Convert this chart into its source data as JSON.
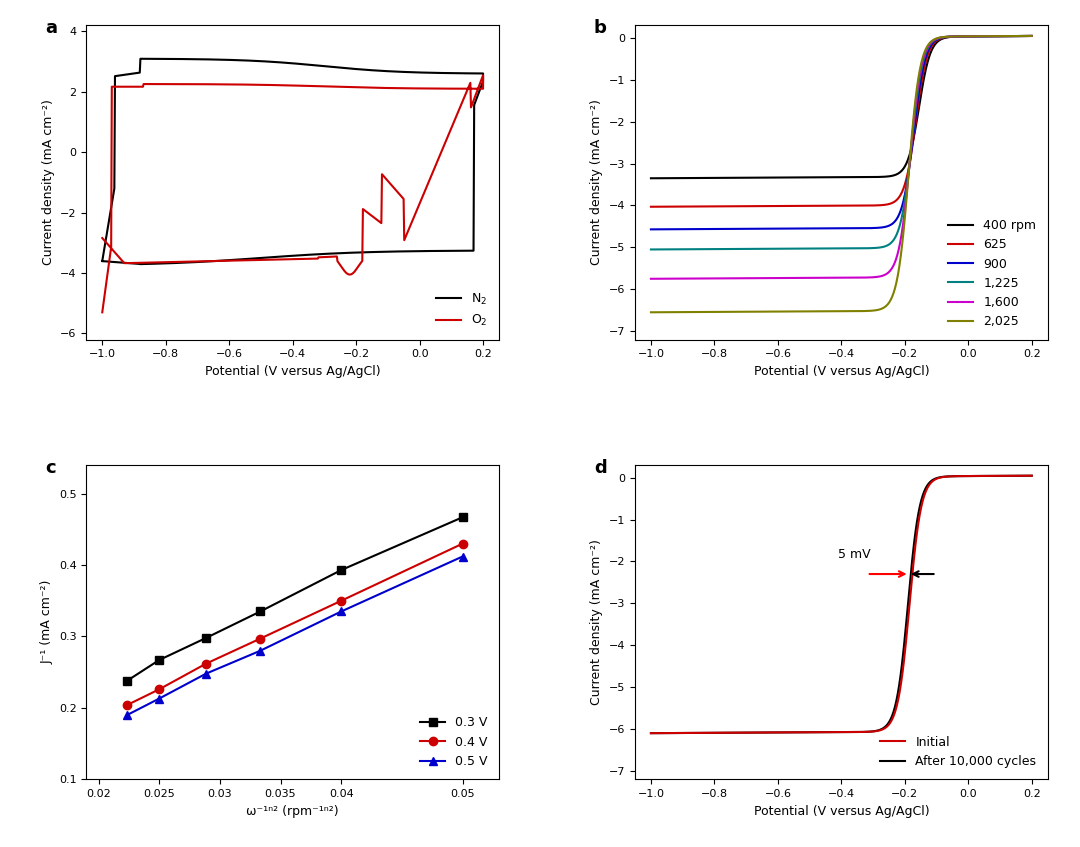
{
  "panel_a": {
    "label": "a",
    "xlabel": "Potential (V versus Ag/AgCl)",
    "ylabel": "Current density (mA cm⁻²)",
    "xlim": [
      -1.05,
      0.25
    ],
    "ylim": [
      -6.2,
      4.2
    ],
    "xticks": [
      -1.0,
      -0.8,
      -0.6,
      -0.4,
      -0.2,
      0.0,
      0.2
    ],
    "yticks": [
      -6,
      -4,
      -2,
      0,
      2,
      4
    ],
    "legend": [
      "N₂",
      "O₂"
    ],
    "colors": [
      "#000000",
      "#cc0000"
    ]
  },
  "panel_b": {
    "label": "b",
    "xlabel": "Potential (V versus Ag/AgCl)",
    "ylabel": "Current density (mA cm⁻²)",
    "xlim": [
      -1.05,
      0.25
    ],
    "ylim": [
      -7.2,
      0.3
    ],
    "xticks": [
      -1.0,
      -0.8,
      -0.6,
      -0.4,
      -0.2,
      0.0,
      0.2
    ],
    "yticks": [
      -7,
      -6,
      -5,
      -4,
      -3,
      -2,
      -1,
      0
    ],
    "legend_labels": [
      "400 rpm",
      "625",
      "900",
      "1,225",
      "1,600",
      "2,025"
    ],
    "colors": [
      "#000000",
      "#cc0000",
      "#0000cc",
      "#008080",
      "#cc00cc",
      "#808000"
    ]
  },
  "panel_c": {
    "label": "c",
    "xlabel": "ω⁻¹ⁿ² (rpm⁻¹ⁿ²)",
    "ylabel": "J⁻¹ (mA cm⁻²)",
    "xlim": [
      0.019,
      0.053
    ],
    "ylim": [
      0.1,
      0.54
    ],
    "xticks": [
      0.02,
      0.025,
      0.03,
      0.035,
      0.04,
      0.05
    ],
    "xtick_labels": [
      "0.02",
      "0.025",
      "0.03",
      "0.035",
      "0.04",
      "0.05"
    ],
    "yticks": [
      0.1,
      0.2,
      0.3,
      0.4,
      0.5
    ],
    "legend_labels": [
      "0.3 V",
      "0.4 V",
      "0.5 V"
    ],
    "colors": [
      "#000000",
      "#cc0000",
      "#0000cc"
    ],
    "x_data": [
      0.02236,
      0.025,
      0.02887,
      0.03333,
      0.04,
      0.05
    ],
    "y_03": [
      0.238,
      0.267,
      0.298,
      0.335,
      0.393,
      0.467
    ],
    "y_04": [
      0.204,
      0.226,
      0.262,
      0.297,
      0.35,
      0.43
    ],
    "y_05": [
      0.19,
      0.213,
      0.248,
      0.28,
      0.335,
      0.412
    ]
  },
  "panel_d": {
    "label": "d",
    "xlabel": "Potential (V versus Ag/AgCl)",
    "ylabel": "Current density (mA cm⁻²)",
    "xlim": [
      -1.05,
      0.25
    ],
    "ylim": [
      -7.2,
      0.3
    ],
    "xticks": [
      -1.0,
      -0.8,
      -0.6,
      -0.4,
      -0.2,
      0.0,
      0.2
    ],
    "yticks": [
      -7,
      -6,
      -5,
      -4,
      -3,
      -2,
      -1,
      0
    ],
    "legend_labels": [
      "Initial",
      "After 10,000 cycles"
    ],
    "colors": [
      "#cc0000",
      "#000000"
    ],
    "annotation_text": "5 mV"
  }
}
